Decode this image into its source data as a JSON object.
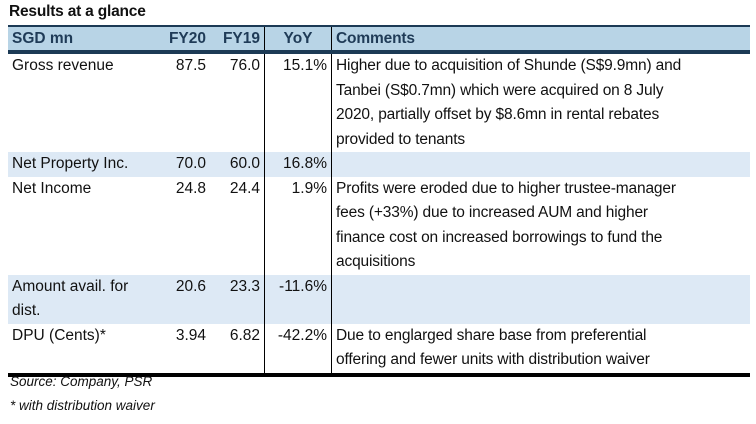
{
  "title": "Results at a glance",
  "headers": [
    "SGD mn",
    "FY20",
    "FY19",
    "YoY",
    "Comments"
  ],
  "rows": [
    {
      "label_lines": [
        "Gross revenue"
      ],
      "fy20": "87.5",
      "fy19": "76.0",
      "yoy": "15.1%",
      "comment_lines": [
        "Higher due to acquisition of Shunde (S$9.9mn) and",
        "Tanbei (S$0.7mn) which were acquired on 8 July",
        "2020, partially offset by $8.6mn in rental rebates",
        "provided to tenants"
      ]
    },
    {
      "label_lines": [
        "Net Property Inc."
      ],
      "fy20": "70.0",
      "fy19": "60.0",
      "yoy": "16.8%",
      "comment_lines": []
    },
    {
      "label_lines": [
        "Net Income"
      ],
      "fy20": "24.8",
      "fy19": "24.4",
      "yoy": "1.9%",
      "comment_lines": [
        "Profits were eroded due to higher trustee-manager",
        "fees (+33%) due to increased AUM and higher",
        "finance cost on increased borrowings to fund the",
        "acquisitions"
      ]
    },
    {
      "label_lines": [
        "Amount avail. for",
        "dist."
      ],
      "fy20": "20.6",
      "fy19": "23.3",
      "yoy": "-11.6%",
      "comment_lines": []
    },
    {
      "label_lines": [
        "DPU (Cents)*"
      ],
      "fy20": "3.94",
      "fy19": "6.82",
      "yoy": "-42.2%",
      "comment_lines": [
        "Due to englarged share base from preferential",
        "offering and fewer units with distribution waiver"
      ]
    }
  ],
  "footnotes": [
    "Source: Company, PSR",
    "* with distribution waiver"
  ],
  "colors": {
    "header_bg": "#b8d4e6",
    "alt_row_bg": "#dde9f5",
    "header_text": "#1f3b57",
    "rule": "#1c3a55"
  }
}
